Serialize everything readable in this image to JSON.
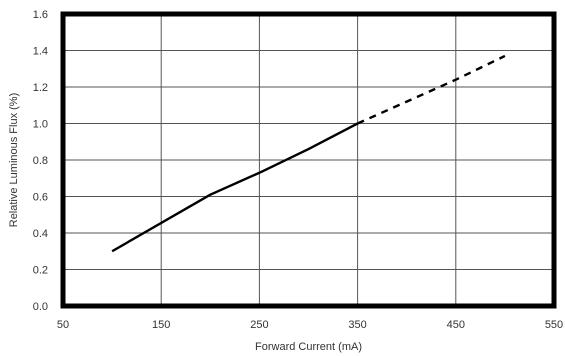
{
  "chart_data": {
    "type": "line",
    "title": "",
    "xlabel": "Forward Current (mA)",
    "ylabel": "Relative Luminous Flux (%)",
    "xlim": [
      50,
      550
    ],
    "ylim": [
      0.0,
      1.6
    ],
    "xticks": [
      50,
      150,
      250,
      350,
      450,
      550
    ],
    "yticks": [
      0.0,
      0.2,
      0.4,
      0.6,
      0.8,
      1.0,
      1.2,
      1.4,
      1.6
    ],
    "xtick_labels": [
      "50",
      "150",
      "250",
      "350",
      "450",
      "550"
    ],
    "ytick_labels": [
      "0.0",
      "0.2",
      "0.4",
      "0.6",
      "0.8",
      "1.0",
      "1.2",
      "1.4",
      "1.6"
    ],
    "grid": true,
    "series": [
      {
        "style": "solid",
        "color": "#000000",
        "x": [
          100,
          200,
          250,
          300,
          350
        ],
        "y": [
          0.3,
          0.61,
          0.73,
          0.86,
          1.0
        ]
      },
      {
        "style": "dashed",
        "color": "#000000",
        "x": [
          350,
          400,
          450,
          500
        ],
        "y": [
          1.0,
          1.12,
          1.24,
          1.37
        ]
      }
    ]
  }
}
